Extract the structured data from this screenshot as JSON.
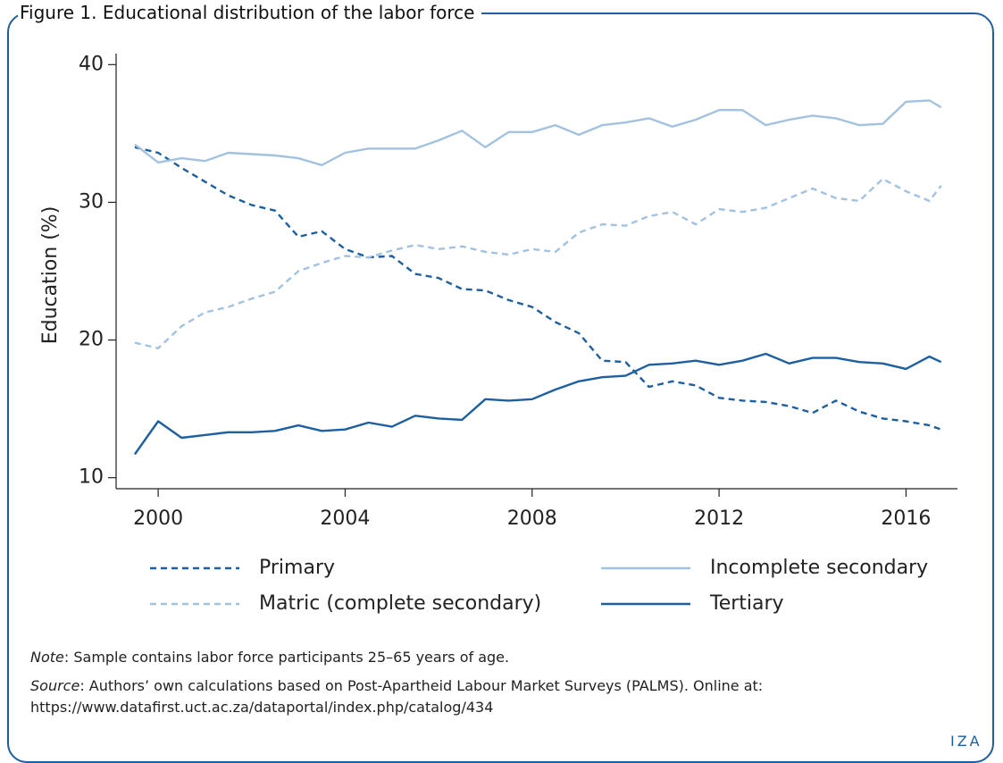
{
  "chart_data": {
    "type": "line",
    "title": "Figure 1. Educational distribution of the labor force",
    "y_label": "Education (%)",
    "x": [
      1999.5,
      2000,
      2000.5,
      2001,
      2001.5,
      2002,
      2002.5,
      2003,
      2003.5,
      2004,
      2004.5,
      2005,
      2005.5,
      2006,
      2006.5,
      2007,
      2007.5,
      2008,
      2008.5,
      2009,
      2009.5,
      2010,
      2010.5,
      2011,
      2011.5,
      2012,
      2012.5,
      2013,
      2013.5,
      2014,
      2014.5,
      2015,
      2015.5,
      2016,
      2016.5,
      2016.75
    ],
    "series": [
      {
        "name": "Primary",
        "color": "#1d5f9f",
        "line_style": "dashed",
        "values": [
          34.0,
          33.6,
          32.5,
          31.5,
          30.5,
          29.8,
          29.4,
          27.5,
          27.9,
          26.6,
          26.0,
          26.1,
          24.8,
          24.5,
          23.7,
          23.6,
          22.9,
          22.4,
          21.3,
          20.5,
          18.5,
          18.4,
          16.6,
          17.0,
          16.7,
          15.8,
          15.6,
          15.5,
          15.2,
          14.7,
          15.6,
          14.8,
          14.3,
          14.1,
          13.8,
          13.5
        ]
      },
      {
        "name": "Incomplete secondary",
        "color": "#a3c2e0",
        "line_style": "solid",
        "values": [
          34.2,
          32.9,
          33.2,
          33.0,
          33.6,
          33.5,
          33.4,
          33.2,
          32.7,
          33.6,
          33.9,
          33.9,
          33.9,
          34.5,
          35.2,
          34.0,
          35.1,
          35.1,
          35.6,
          34.9,
          35.6,
          35.8,
          36.1,
          35.5,
          36.0,
          36.7,
          36.7,
          35.6,
          36.0,
          36.3,
          36.1,
          35.6,
          35.7,
          37.3,
          37.4,
          36.9
        ]
      },
      {
        "name": "Matric (complete secondary)",
        "color": "#a3c2e0",
        "line_style": "dashed",
        "values": [
          19.8,
          19.4,
          21.0,
          22.0,
          22.4,
          23.0,
          23.5,
          25.0,
          25.6,
          26.1,
          26.0,
          26.5,
          26.9,
          26.6,
          26.8,
          26.4,
          26.2,
          26.6,
          26.4,
          27.8,
          28.4,
          28.3,
          29.0,
          29.3,
          28.4,
          29.5,
          29.3,
          29.6,
          30.3,
          31.0,
          30.3,
          30.1,
          31.7,
          30.8,
          30.1,
          31.2
        ]
      },
      {
        "name": "Tertiary",
        "color": "#1d5f9f",
        "line_style": "solid",
        "values": [
          11.7,
          14.1,
          12.9,
          13.1,
          13.3,
          13.3,
          13.4,
          13.8,
          13.4,
          13.5,
          14.0,
          13.7,
          14.5,
          14.3,
          14.2,
          15.7,
          15.6,
          15.7,
          16.4,
          17.0,
          17.3,
          17.4,
          18.2,
          18.3,
          18.5,
          18.2,
          18.5,
          19.0,
          18.3,
          18.7,
          18.7,
          18.4,
          18.3,
          17.9,
          18.8,
          18.4
        ]
      }
    ],
    "xlim": [
      1999.1,
      2017.1
    ],
    "xticks": [
      2000,
      2004,
      2008,
      2012,
      2016
    ],
    "ylim": [
      9.2,
      40.8
    ],
    "yticks": [
      10,
      20,
      30,
      40
    ],
    "grid": false,
    "legend": "bottom",
    "note_label": "Note",
    "note": ": Sample contains labor force participants 25–65 years of age.",
    "source_label": "Source",
    "source": ": Authors’ own calculations based on Post-Apartheid Labour Market Surveys (PALMS). Online at: https://www.datafirst.uct.ac.za/dataportal/index.php/catalog/434"
  },
  "logo": "IZA"
}
